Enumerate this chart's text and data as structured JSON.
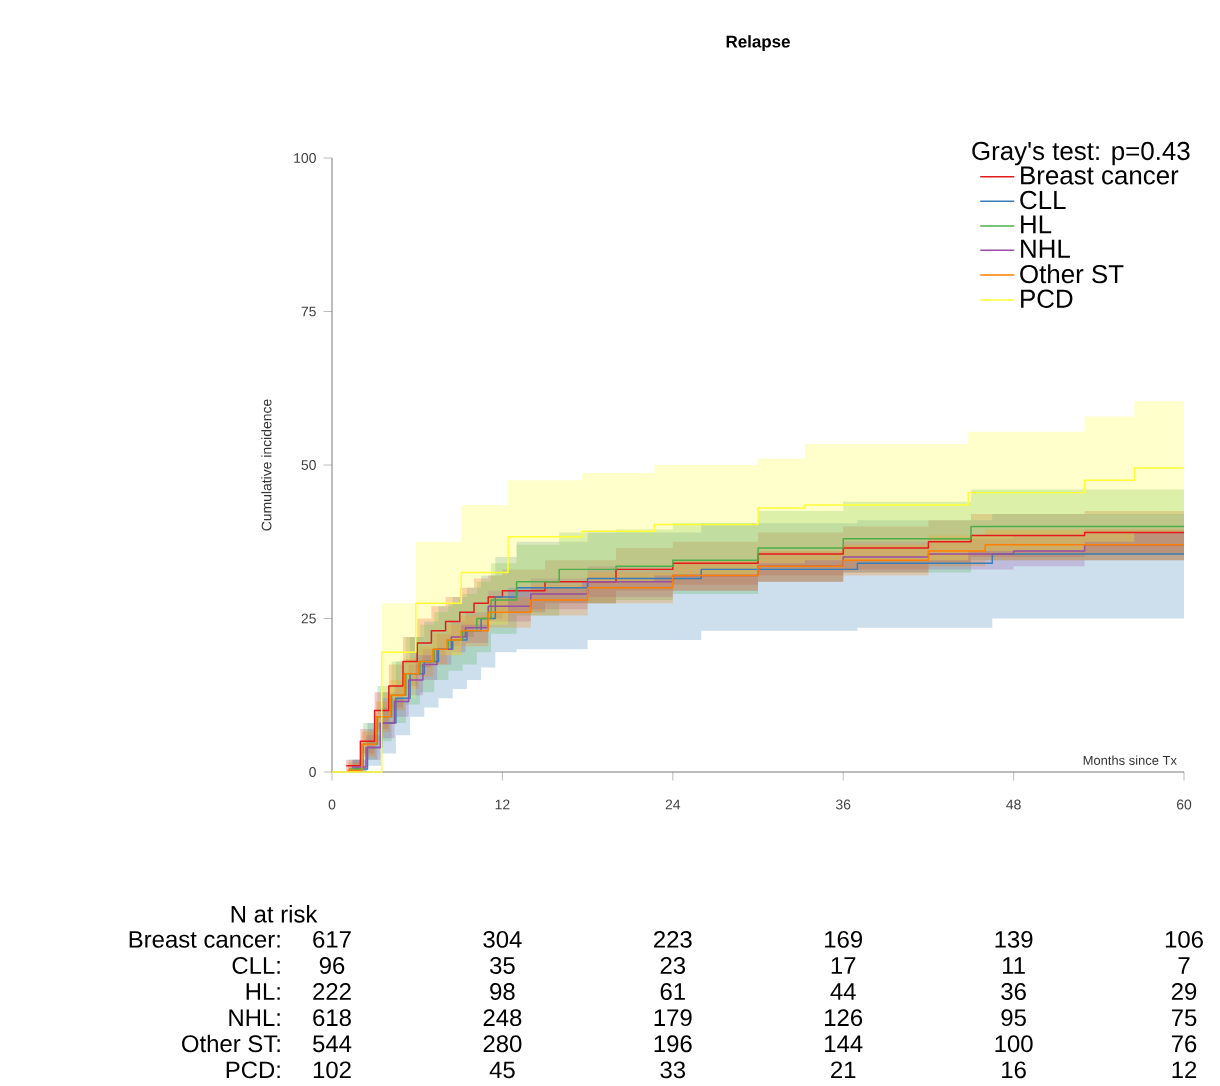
{
  "chart_data": {
    "type": "step",
    "title": "Relapse",
    "xlabel": "Months since Tx",
    "ylabel": "Cumulative incidence",
    "legend_title": "Gray's test: p=0.43",
    "legend": "top right",
    "xlim": [
      0,
      60
    ],
    "ylim": [
      0,
      100
    ],
    "xticks": [
      0,
      12,
      24,
      36,
      48,
      60
    ],
    "yticks": [
      0,
      25,
      50,
      75,
      100
    ],
    "series": [
      {
        "name": "Breast cancer",
        "color": "#e41a1c",
        "x": [
          1,
          2,
          3,
          4,
          5,
          6,
          7,
          8,
          9,
          10,
          11,
          12,
          15,
          20,
          24,
          30,
          36,
          42,
          45,
          53,
          60
        ],
        "values": [
          1,
          5,
          10,
          14,
          18,
          21,
          23,
          24.5,
          26,
          27.5,
          28.5,
          29.5,
          31,
          33,
          34,
          35.5,
          36.5,
          37.5,
          38.5,
          39,
          39
        ],
        "lower": [
          0,
          3,
          7,
          10.5,
          14,
          17,
          19,
          20.5,
          22,
          23.5,
          25,
          26,
          27.5,
          29.5,
          30.5,
          32,
          33,
          34,
          35,
          35.5,
          35.5
        ],
        "upper": [
          2,
          7,
          13,
          17.5,
          22,
          25,
          27,
          28.5,
          30,
          31.5,
          32,
          33,
          34.5,
          36.5,
          37.5,
          39,
          40,
          41,
          42,
          42.5,
          42.5
        ]
      },
      {
        "name": "CLL",
        "color": "#377eb8",
        "x": [
          1.5,
          2.5,
          3.5,
          4.5,
          5.5,
          6.5,
          7.5,
          8.5,
          9.5,
          10.5,
          11.5,
          13,
          18,
          26,
          37,
          46.5,
          60
        ],
        "values": [
          0.5,
          4,
          8,
          12,
          16,
          18,
          20,
          21.5,
          23,
          25,
          28.5,
          30,
          31.5,
          33,
          34,
          35.5,
          35.5
        ],
        "lower": [
          0,
          1,
          3,
          6,
          9,
          10.5,
          12,
          13.5,
          15,
          17,
          19.5,
          20,
          21.5,
          23,
          23.5,
          25,
          25
        ],
        "upper": [
          2,
          8,
          13,
          18,
          22,
          24.5,
          27,
          28.5,
          30,
          32,
          35,
          37.5,
          39,
          40.5,
          41,
          42,
          42
        ]
      },
      {
        "name": "HL",
        "color": "#4daf4a",
        "x": [
          1.2,
          2.2,
          3.2,
          4.2,
          5.2,
          6.2,
          7.2,
          8.2,
          9.2,
          10.2,
          11.2,
          13,
          16,
          20,
          24,
          30,
          36,
          45,
          60
        ],
        "values": [
          0.5,
          4.5,
          9,
          12.5,
          16,
          18,
          20,
          21.5,
          23,
          25,
          28,
          31,
          33,
          33.5,
          34.5,
          36.5,
          38,
          40,
          40
        ],
        "lower": [
          0,
          2,
          5,
          8,
          11,
          13,
          15,
          16.5,
          17.5,
          19.5,
          22.5,
          25.5,
          27.5,
          28,
          29,
          31,
          32.5,
          34.5,
          34.5
        ],
        "upper": [
          2,
          8,
          14,
          18,
          22,
          24,
          26,
          27.5,
          29,
          31,
          34,
          37,
          39,
          39.5,
          40.5,
          42.5,
          44,
          46,
          46
        ]
      },
      {
        "name": "NHL",
        "color": "#984ea3",
        "x": [
          1.4,
          2.4,
          3.4,
          4.4,
          5.4,
          6.4,
          7.4,
          8.4,
          9.4,
          11,
          14,
          18,
          24,
          30,
          36,
          42,
          48,
          53,
          60
        ],
        "values": [
          0.8,
          4,
          8,
          11.5,
          15,
          17.5,
          20,
          22,
          23.5,
          27,
          29,
          31,
          32,
          33.5,
          35,
          35.5,
          36,
          37,
          37
        ],
        "lower": [
          0,
          2,
          5.5,
          9,
          12.5,
          15,
          17.5,
          19.5,
          21,
          24.5,
          26.5,
          28.5,
          29.5,
          31,
          32.5,
          33,
          33.5,
          34.5,
          34.5
        ],
        "upper": [
          2,
          6,
          10.5,
          14,
          17.5,
          20,
          22.5,
          24.5,
          26,
          29.5,
          31.5,
          33.5,
          34.5,
          36,
          37.5,
          38,
          38.5,
          39.5,
          39.5
        ]
      },
      {
        "name": "Other ST",
        "color": "#ff7f00",
        "x": [
          1.1,
          2.1,
          3.1,
          4.1,
          5.1,
          6.1,
          7.1,
          8.1,
          9.1,
          11,
          14,
          18,
          24,
          30,
          36,
          42,
          46,
          60
        ],
        "values": [
          0.3,
          4.5,
          9,
          12.5,
          16,
          18,
          20,
          21.5,
          23,
          26,
          28,
          30,
          32,
          33.5,
          34.5,
          36,
          37,
          37
        ],
        "lower": [
          0,
          2.5,
          6.5,
          10,
          13.5,
          15.5,
          17.5,
          19,
          20.5,
          23.5,
          25.5,
          27.5,
          29.5,
          31,
          32,
          33.5,
          34.5,
          34.5
        ],
        "upper": [
          1.5,
          6.5,
          11.5,
          15,
          18.5,
          20.5,
          22.5,
          24,
          25.5,
          28.5,
          30.5,
          32.5,
          34.5,
          36,
          37,
          38.5,
          39.5,
          39.5
        ]
      },
      {
        "name": "PCD",
        "color": "#ffff33",
        "x": [
          0,
          1,
          3.5,
          5.9,
          9.1,
          12.4,
          17.6,
          22.7,
          30,
          33.3,
          44.8,
          53,
          56.5,
          60
        ],
        "values": [
          0,
          0,
          19.5,
          27.5,
          32.5,
          38.3,
          39.2,
          40.3,
          43,
          43.5,
          45.5,
          47.5,
          49.5,
          49.5
        ],
        "lower": [
          0,
          0,
          12,
          19,
          24,
          30,
          31,
          32,
          34,
          34.5,
          36,
          37.5,
          39,
          39
        ],
        "upper": [
          0,
          0,
          27.5,
          37.5,
          43.5,
          47.5,
          48.7,
          50,
          51,
          53.4,
          55.4,
          57.9,
          60.4,
          60.4
        ]
      }
    ],
    "annotations": [
      "N at risk",
      "Breast cancer:",
      "617",
      "304",
      "223",
      "169",
      "139",
      "106",
      "CLL:",
      "96",
      "35",
      "23",
      "17",
      "11",
      "7",
      "HL:",
      "222",
      "98",
      "61",
      "44",
      "36",
      "29",
      "NHL:",
      "618",
      "248",
      "179",
      "126",
      "95",
      "75",
      "Other ST:",
      "544",
      "280",
      "196",
      "144",
      "100",
      "76",
      "PCD:",
      "102",
      "45",
      "33",
      "21",
      "16",
      "12"
    ]
  }
}
